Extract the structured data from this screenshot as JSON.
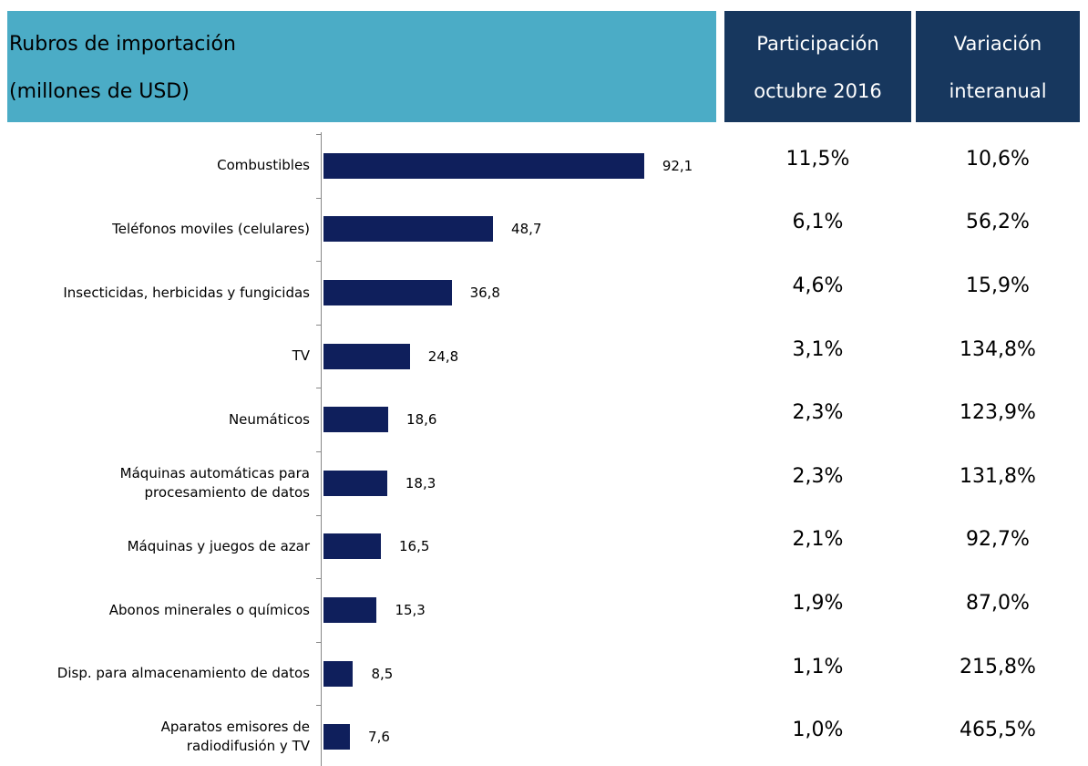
{
  "header": {
    "title": [
      "Rubros de importación",
      "(millones de USD)"
    ],
    "columns": [
      [
        "Participación",
        "octubre 2016"
      ],
      [
        "Variación",
        "interanual"
      ]
    ]
  },
  "chart_data": {
    "type": "hbar",
    "categories": [
      "Combustibles",
      "Teléfonos moviles (celulares)",
      "Insecticidas, herbicidas y fungicidas",
      "TV",
      "Neumáticos",
      "Máquinas automáticas para\nprocesamiento de datos",
      "Máquinas y juegos de azar",
      "Abonos minerales o químicos ",
      "Disp. para almacenamiento de datos",
      "Aparatos emisores de\nradiodifusión y TV"
    ],
    "values": [
      92.1,
      48.7,
      36.8,
      24.8,
      18.6,
      18.3,
      16.5,
      15.3,
      8.5,
      7.6
    ],
    "value_labels": [
      "92,1",
      "48,7",
      "36,8",
      "24,8",
      "18,6",
      "18,3",
      "16,5",
      "15,3",
      "8,5",
      "7,6"
    ],
    "color": "#0f1f5c",
    "xlim": [
      0,
      100
    ]
  },
  "table": {
    "rows": [
      [
        "11,5%",
        "10,6%"
      ],
      [
        "6,1%",
        "56,2%"
      ],
      [
        "4,6%",
        "15,9%"
      ],
      [
        "3,1%",
        "134,8%"
      ],
      [
        "2,3%",
        "123,9%"
      ],
      [
        "2,3%",
        "131,8%"
      ],
      [
        "2,1%",
        "92,7%"
      ],
      [
        "1,9%",
        "87,0%"
      ],
      [
        "1,1%",
        "215,8%"
      ],
      [
        "1,0%",
        "465,5%"
      ]
    ]
  }
}
